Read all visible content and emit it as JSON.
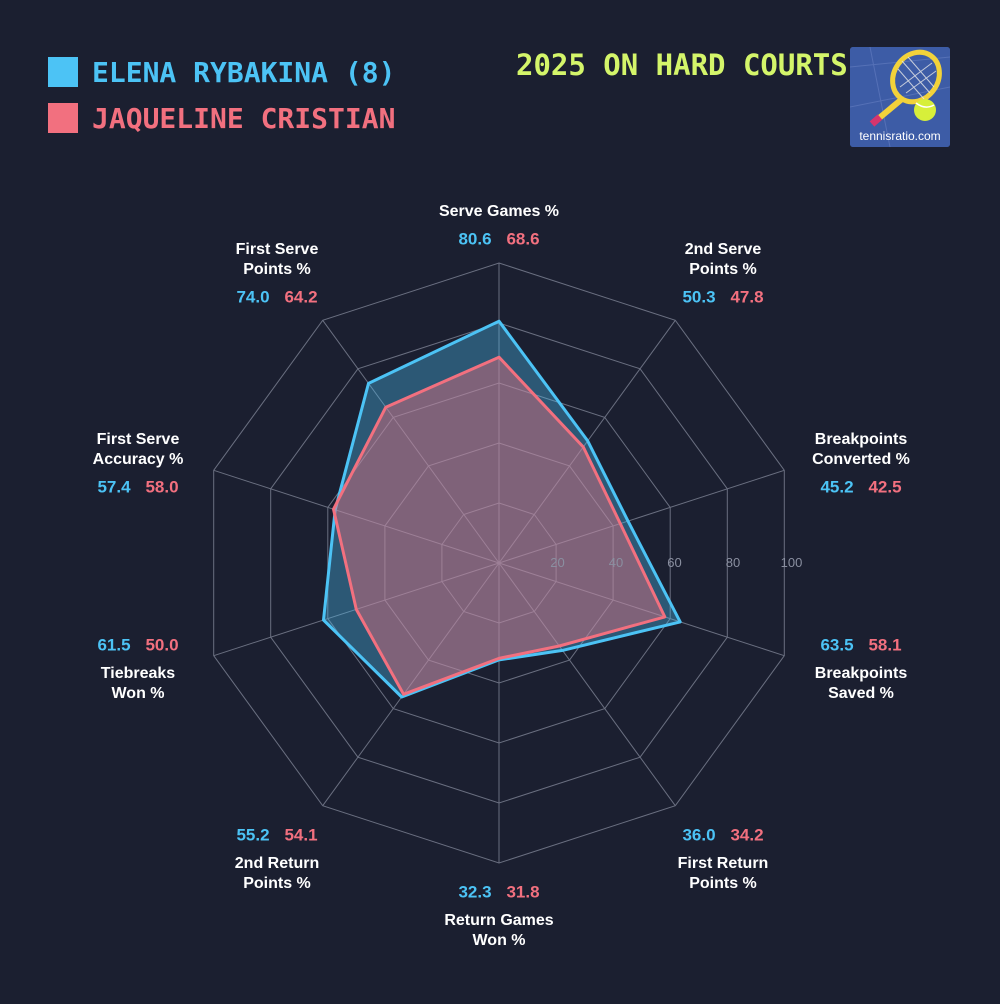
{
  "legend": {
    "items": [
      {
        "name": "ELENA RYBAKINA (8)",
        "color": "#4cc3f5"
      },
      {
        "name": "JAQUELINE CRISTIAN",
        "color": "#f2707f"
      }
    ]
  },
  "title": "2025 ON HARD COURTS",
  "logo": {
    "text": "tennisratio.com",
    "icon": "tennis-racket-ball-icon"
  },
  "colors": {
    "background": "#1b1f30",
    "player1": "#4cc3f5",
    "player2": "#f2707f",
    "title": "#d4f56a",
    "grid": "#6a6f80"
  },
  "chart_data": {
    "type": "radar",
    "scale": [
      0,
      100
    ],
    "rings": [
      20,
      40,
      60,
      80,
      100
    ],
    "tick_labels": [
      "20",
      "40",
      "60",
      "80",
      "100"
    ],
    "categories": [
      "Serve Games %",
      "2nd Serve Points %",
      "Breakpoints Converted %",
      "Breakpoints Saved %",
      "First Return Points %",
      "Return Games Won %",
      "2nd Return Points %",
      "Tiebreaks Won %",
      "First Serve Accuracy %",
      "First Serve Points %"
    ],
    "category_lines": [
      [
        "Serve Games %"
      ],
      [
        "2nd Serve",
        "Points %"
      ],
      [
        "Breakpoints",
        "Converted %"
      ],
      [
        "Breakpoints",
        "Saved %"
      ],
      [
        "First Return",
        "Points %"
      ],
      [
        "Return Games",
        "Won %"
      ],
      [
        "2nd Return",
        "Points %"
      ],
      [
        "Tiebreaks",
        "Won %"
      ],
      [
        "First Serve",
        "Accuracy %"
      ],
      [
        "First Serve",
        "Points %"
      ]
    ],
    "series": [
      {
        "name": "ELENA RYBAKINA (8)",
        "values": [
          80.6,
          50.3,
          45.2,
          63.5,
          36.0,
          32.3,
          55.2,
          61.5,
          57.4,
          74.0
        ]
      },
      {
        "name": "JAQUELINE CRISTIAN",
        "values": [
          68.6,
          47.8,
          42.5,
          58.1,
          34.2,
          31.8,
          54.1,
          50.0,
          58.0,
          64.2
        ]
      }
    ],
    "value_labels": [
      [
        "80.6",
        "68.6"
      ],
      [
        "50.3",
        "47.8"
      ],
      [
        "45.2",
        "42.5"
      ],
      [
        "63.5",
        "58.1"
      ],
      [
        "36.0",
        "34.2"
      ],
      [
        "32.3",
        "31.8"
      ],
      [
        "55.2",
        "54.1"
      ],
      [
        "61.5",
        "50.0"
      ],
      [
        "57.4",
        "58.0"
      ],
      [
        "74.0",
        "64.2"
      ]
    ]
  }
}
